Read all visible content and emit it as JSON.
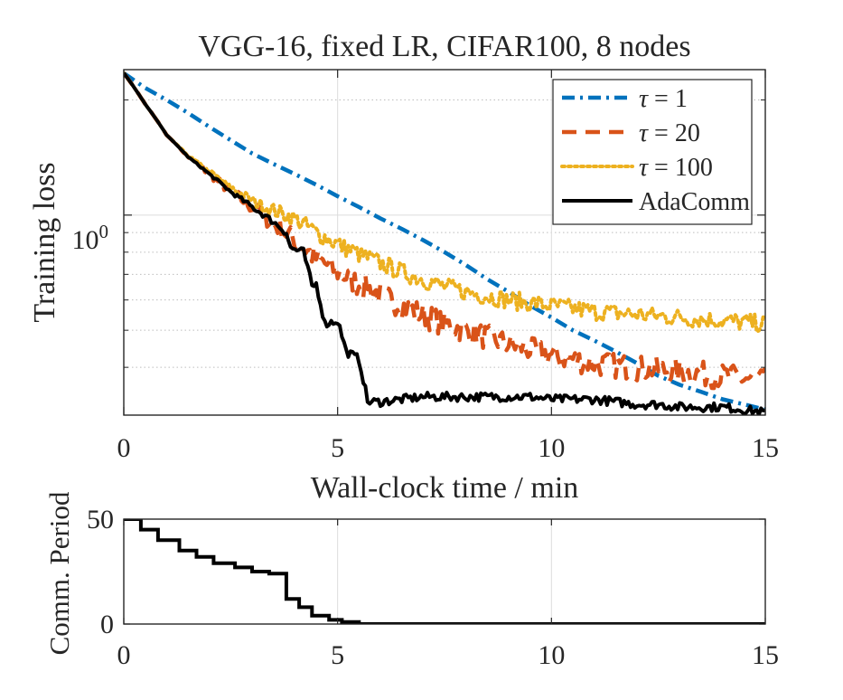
{
  "chart_data": [
    {
      "type": "line",
      "title": "VGG-16, fixed LR, CIFAR100, 8 nodes",
      "xlabel": "Wall-clock time / min",
      "ylabel": "Training loss",
      "xlim": [
        0,
        15
      ],
      "ylim_log": [
        0.3,
        2.4
      ],
      "yscale": "log",
      "xticks": [
        "0",
        "5",
        "10",
        "15"
      ],
      "ytick_label": {
        "base": "10",
        "exp": "0"
      },
      "grid": true,
      "legend": "top-right",
      "series": [
        {
          "name": "τ = 1",
          "legend_sym": "τ",
          "legend_rest": " = 1",
          "color": "#0072BD",
          "style": "dashdot",
          "noise": 0,
          "x": [
            0,
            0.5,
            1,
            1.5,
            2,
            2.5,
            3,
            3.5,
            4,
            4.5,
            5,
            5.5,
            6,
            6.5,
            7,
            7.5,
            8,
            8.5,
            9,
            9.5,
            10,
            10.5,
            11,
            11.5,
            12,
            12.5,
            13,
            13.5,
            14,
            14.5,
            15
          ],
          "y": [
            2.35,
            2.15,
            2.0,
            1.85,
            1.7,
            1.57,
            1.45,
            1.36,
            1.28,
            1.2,
            1.12,
            1.05,
            0.98,
            0.92,
            0.86,
            0.8,
            0.74,
            0.68,
            0.63,
            0.58,
            0.54,
            0.5,
            0.47,
            0.44,
            0.41,
            0.38,
            0.36,
            0.345,
            0.33,
            0.32,
            0.31
          ]
        },
        {
          "name": "τ = 20",
          "legend_sym": "τ",
          "legend_rest": " = 20",
          "color": "#D95319",
          "style": "dashed",
          "noise": 0.035,
          "x": [
            0,
            0.5,
            1,
            1.5,
            2,
            2.5,
            3,
            3.5,
            4,
            4.5,
            5,
            5.5,
            6,
            6.5,
            7,
            7.5,
            8,
            8.5,
            9,
            9.5,
            10,
            10.5,
            11,
            11.5,
            12,
            12.5,
            13,
            13.5,
            14,
            14.5,
            15
          ],
          "y": [
            2.35,
            1.95,
            1.62,
            1.42,
            1.28,
            1.15,
            1.05,
            0.95,
            0.86,
            0.77,
            0.71,
            0.66,
            0.62,
            0.58,
            0.55,
            0.52,
            0.5,
            0.48,
            0.46,
            0.445,
            0.43,
            0.42,
            0.41,
            0.405,
            0.4,
            0.395,
            0.39,
            0.385,
            0.38,
            0.375,
            0.37
          ]
        },
        {
          "name": "τ = 100",
          "legend_sym": "τ",
          "legend_rest": " = 100",
          "color": "#EDB120",
          "style": "dotted",
          "noise": 0.025,
          "x": [
            0,
            0.5,
            1,
            1.5,
            2,
            2.5,
            3,
            3.5,
            4,
            4.5,
            5,
            5.5,
            6,
            6.5,
            7,
            7.5,
            8,
            8.5,
            9,
            9.5,
            10,
            10.5,
            11,
            11.5,
            12,
            12.5,
            13,
            13.5,
            14,
            14.5,
            15
          ],
          "y": [
            2.35,
            1.95,
            1.62,
            1.43,
            1.3,
            1.18,
            1.09,
            1.03,
            0.98,
            0.9,
            0.84,
            0.79,
            0.75,
            0.71,
            0.68,
            0.65,
            0.63,
            0.615,
            0.6,
            0.59,
            0.58,
            0.57,
            0.56,
            0.555,
            0.55,
            0.545,
            0.54,
            0.535,
            0.53,
            0.525,
            0.52
          ]
        },
        {
          "name": "AdaComm",
          "legend_sym": "",
          "legend_rest": "AdaComm",
          "color": "#000000",
          "style": "solid",
          "noise": 0.012,
          "x": [
            0,
            0.5,
            1,
            1.5,
            2,
            2.5,
            3,
            3.5,
            3.8,
            3.9,
            4.2,
            4.4,
            4.5,
            4.7,
            5,
            5.2,
            5.5,
            5.7,
            6,
            6.5,
            7,
            7.5,
            8,
            8.5,
            9,
            9.5,
            10,
            10.5,
            11,
            11.5,
            12,
            12.5,
            13,
            13.5,
            14,
            14.5,
            15
          ],
          "y": [
            2.35,
            1.95,
            1.62,
            1.42,
            1.28,
            1.15,
            1.05,
            0.96,
            0.9,
            0.82,
            0.8,
            0.65,
            0.66,
            0.52,
            0.53,
            0.44,
            0.42,
            0.325,
            0.325,
            0.33,
            0.335,
            0.335,
            0.335,
            0.335,
            0.335,
            0.335,
            0.33,
            0.33,
            0.33,
            0.325,
            0.32,
            0.32,
            0.315,
            0.315,
            0.315,
            0.31,
            0.305
          ]
        }
      ]
    },
    {
      "type": "line",
      "xlabel": "",
      "ylabel": "Comm. Period",
      "xlim": [
        0,
        15
      ],
      "ylim": [
        0,
        50
      ],
      "xticks": [
        "0",
        "5",
        "10",
        "15"
      ],
      "yticks": [
        "0",
        "50"
      ],
      "grid": true,
      "series": [
        {
          "name": "AdaComm",
          "color": "#000000",
          "style": "steps",
          "x": [
            0,
            0.4,
            0.4,
            0.8,
            0.8,
            1.3,
            1.3,
            1.7,
            1.7,
            2.1,
            2.1,
            2.6,
            2.6,
            3.0,
            3.0,
            3.4,
            3.4,
            3.8,
            3.8,
            4.1,
            4.1,
            4.4,
            4.4,
            4.8,
            4.8,
            5.1,
            5.1,
            5.5,
            5.5,
            15
          ],
          "y": [
            50,
            50,
            45,
            45,
            40,
            40,
            35,
            35,
            32,
            32,
            29,
            29,
            27,
            27,
            25,
            25,
            24,
            24,
            12,
            12,
            8,
            8,
            4,
            4,
            2,
            2,
            1,
            1,
            0,
            0
          ]
        }
      ]
    }
  ]
}
